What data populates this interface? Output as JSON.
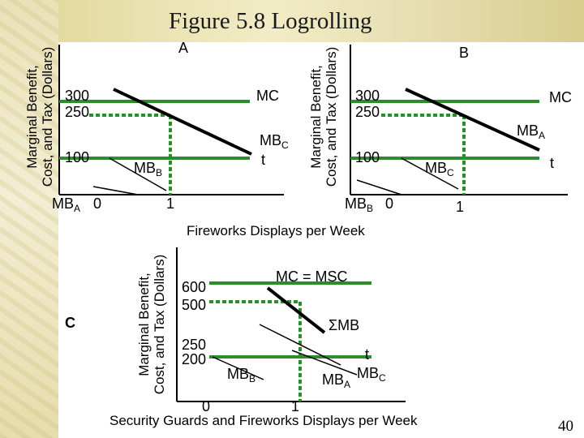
{
  "title": "Figure 5.8 Logrolling",
  "slide_number": "40",
  "axis_label_vertical": {
    "line1": "Marginal Benefit,",
    "line2": "Cost, and Tax (Dollars)"
  },
  "panel_a": {
    "label": "A",
    "ticks_y": [
      "300",
      "250",
      "100"
    ],
    "tick_x0": "0",
    "tick_x1": "1",
    "mc": "MC",
    "mbc": "MB",
    "mbc_sub": "C",
    "t": "t",
    "mbb": "MB",
    "mbb_sub": "B",
    "mba": "MB",
    "mba_sub": "A"
  },
  "panel_b": {
    "label": "B",
    "ticks_y": [
      "300",
      "250",
      "100"
    ],
    "tick_x0": "0",
    "tick_x1": "1",
    "mc": "MC",
    "mba": "MB",
    "mba_sub": "A",
    "mbc": "MB",
    "mbc_sub": "C",
    "t": "t",
    "mbb": "MB",
    "mbb_sub": "B"
  },
  "shared_x_label": "Fireworks Displays per Week",
  "panel_c": {
    "label": "C",
    "ticks_y": [
      "600",
      "500",
      "250",
      "200"
    ],
    "tick_x0": "0",
    "tick_x1": "1",
    "mc_msc": "MC = MSC",
    "sum_mb": "ΣMB",
    "t": "t",
    "mbb": "MB",
    "mbb_sub": "B",
    "mba": "MB",
    "mba_sub": "A",
    "mbc": "MB",
    "mbc_sub": "C",
    "x_label": "Security Guards and Fireworks Displays per Week"
  },
  "colors": {
    "cost_line": "#2e8b2e",
    "benefit_line": "#000000",
    "accent_band": "#e3da9f"
  }
}
